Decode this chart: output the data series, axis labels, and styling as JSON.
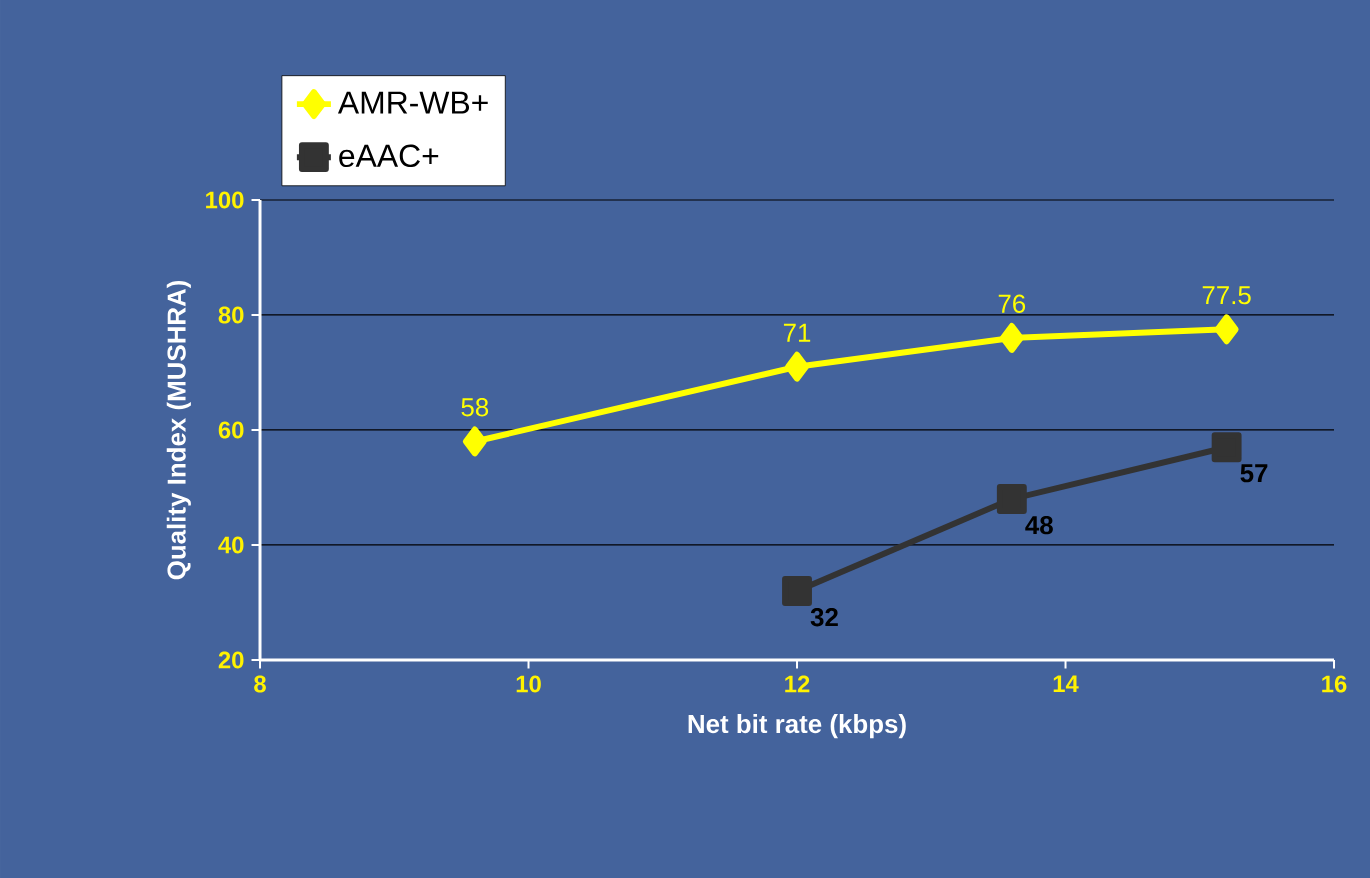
{
  "chart_data": {
    "type": "line",
    "xlabel": "Net bit rate (kbps)",
    "ylabel": "Quality Index (MUSHRA)",
    "xlim": [
      8,
      16
    ],
    "xticks": [
      8,
      10,
      12,
      14,
      16
    ],
    "ylim": [
      20,
      100
    ],
    "yticks": [
      20,
      40,
      60,
      80,
      100
    ],
    "grid": "y",
    "legend": "top left",
    "series": [
      {
        "name": "AMR-WB+",
        "color": "#ffff00",
        "marker": "diamond",
        "x": [
          9.6,
          12,
          13.6,
          15.2
        ],
        "values": [
          58,
          71,
          76,
          77.5
        ],
        "value_labels": [
          "58",
          "71",
          "76",
          "77.5"
        ]
      },
      {
        "name": "eAAC+",
        "color": "#333333",
        "marker": "square",
        "x": [
          12,
          13.6,
          15.2
        ],
        "values": [
          32,
          48,
          57
        ],
        "value_labels": [
          "32",
          "48",
          "57"
        ]
      }
    ]
  }
}
